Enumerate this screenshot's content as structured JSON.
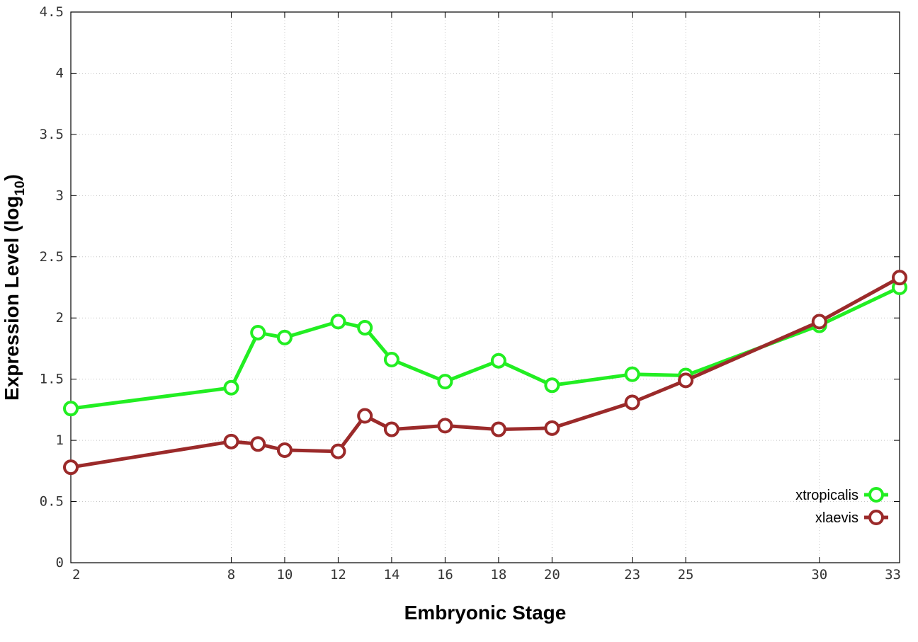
{
  "chart_data": {
    "type": "line",
    "title": "",
    "xlabel": "Embryonic Stage",
    "ylabel": {
      "main": "Expression Level (log",
      "sub": "10",
      "close": ")"
    },
    "x": [
      2,
      8,
      9,
      10,
      12,
      13,
      14,
      16,
      18,
      20,
      23,
      25,
      30,
      33
    ],
    "xlim": [
      2,
      33
    ],
    "xticks": [
      2,
      8,
      10,
      12,
      14,
      16,
      18,
      20,
      23,
      25,
      30,
      33
    ],
    "ylim": [
      0,
      4.5
    ],
    "yticks": [
      "0",
      "0.5",
      "1",
      "1.5",
      "2",
      "2.5",
      "3",
      "3.5",
      "4",
      "4.5"
    ],
    "grid": true,
    "legend_position": "bottom-right",
    "series": [
      {
        "name": "xtropicalis",
        "color": "#22ee22",
        "marker": "open-circle",
        "values": [
          1.26,
          1.43,
          1.88,
          1.84,
          1.97,
          1.92,
          1.66,
          1.48,
          1.65,
          1.45,
          1.54,
          1.53,
          1.94,
          2.25
        ]
      },
      {
        "name": "xlaevis",
        "color": "#9b2a2a",
        "marker": "open-circle",
        "values": [
          0.78,
          0.99,
          0.97,
          0.92,
          0.91,
          1.2,
          1.09,
          1.12,
          1.09,
          1.1,
          1.31,
          1.49,
          1.97,
          2.33
        ]
      }
    ]
  }
}
